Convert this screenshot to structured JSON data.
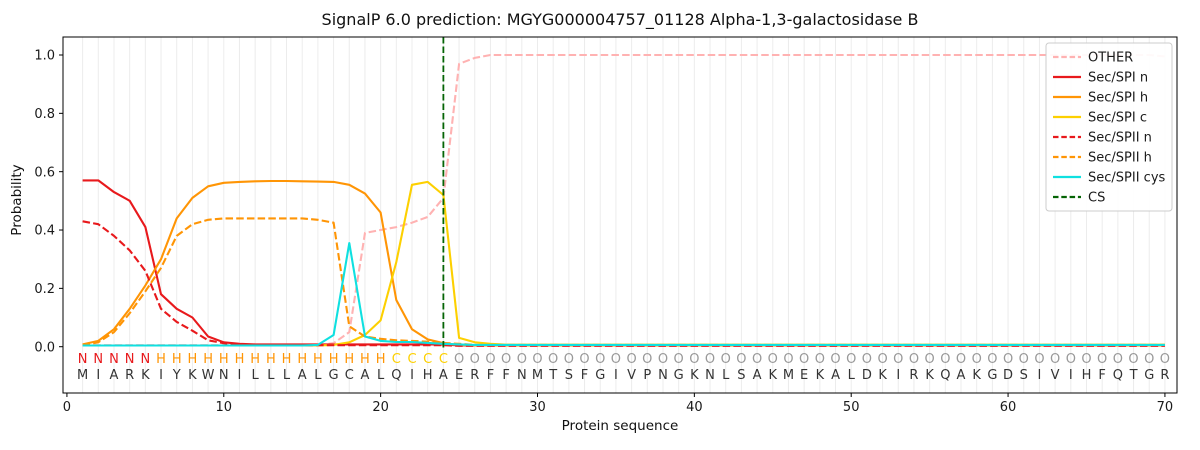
{
  "chart_data": {
    "type": "line",
    "title": "SignalP 6.0 prediction: MGYG000004757_01128 Alpha-1,3-galactosidase B",
    "xlabel": "Protein sequence",
    "ylabel": "Probability",
    "xticks": [
      "0",
      "10",
      "20",
      "30",
      "40",
      "50",
      "60",
      "70"
    ],
    "yticks": [
      "0.0",
      "0.2",
      "0.4",
      "0.6",
      "0.8",
      "1.0"
    ],
    "xlim": [
      -0.25,
      70.77
    ],
    "ylim": [
      -0.16,
      1.06
    ],
    "grid": "vertical gridline at every residue 1-70",
    "legend_position": "upper right",
    "colors": {
      "grid": "#ececec",
      "spine": "#000000",
      "text": "#1a1a1a",
      "sequence_letters": "#333333"
    },
    "region_colors": {
      "N": "#e8191c",
      "H": "#ff9505",
      "C": "#fdd000",
      "O": "#999999"
    },
    "sequence": "MIARKIYKWNILLLALGCALQIHAERFFNMTSFGIVPNGKNLSAKMEKALDKIRKQAKGDSIVIHFQTGR",
    "region_labels": "NNNNNHHHHHHHHHHHHHHHCCCCOOOOOOOOOOOOOOOOOOOOOOOOOOOOOOOOOOOOOOOOOOOOOO",
    "legend": [
      {
        "label": "OTHER",
        "color": "#ffb2b2",
        "dash": "dashed"
      },
      {
        "label": "Sec/SPI n",
        "color": "#e8191c",
        "dash": "solid"
      },
      {
        "label": "Sec/SPI h",
        "color": "#ff9505",
        "dash": "solid"
      },
      {
        "label": "Sec/SPI c",
        "color": "#fdd000",
        "dash": "solid"
      },
      {
        "label": "Sec/SPII n",
        "color": "#e8191c",
        "dash": "dashed"
      },
      {
        "label": "Sec/SPII h",
        "color": "#ff9505",
        "dash": "dashed"
      },
      {
        "label": "Sec/SPII cys",
        "color": "#0fe0e0",
        "dash": "solid"
      },
      {
        "label": "CS",
        "color": "#056405",
        "dash": "dashed"
      }
    ],
    "series": [
      {
        "name": "OTHER",
        "color": "#ffb2b2",
        "dash": "dashed",
        "values": [
          0.005,
          0.005,
          0.005,
          0.005,
          0.005,
          0.005,
          0.005,
          0.005,
          0.005,
          0.005,
          0.005,
          0.005,
          0.005,
          0.005,
          0.005,
          0.005,
          0.012,
          0.05,
          0.39,
          0.4,
          0.41,
          0.425,
          0.445,
          0.51,
          0.97,
          0.99,
          1,
          1,
          1,
          1,
          1,
          1,
          1,
          1,
          1,
          1,
          1,
          1,
          1,
          1,
          1,
          1,
          1,
          1,
          1,
          1,
          1,
          1,
          1,
          1,
          1,
          1,
          1,
          1,
          1,
          1,
          1,
          1,
          1,
          1,
          1,
          1,
          1,
          1,
          1,
          1,
          1,
          1,
          1,
          0.995
        ]
      },
      {
        "name": "Sec/SPI n",
        "color": "#e8191c",
        "dash": "solid",
        "values": [
          0.57,
          0.57,
          0.53,
          0.5,
          0.41,
          0.18,
          0.13,
          0.1,
          0.035,
          0.015,
          0.01,
          0.008,
          0.008,
          0.008,
          0.008,
          0.008,
          0.008,
          0.008,
          0.008,
          0.008,
          0.008,
          0.008,
          0.008,
          0.008,
          0.004,
          0.004,
          0.004,
          0.004,
          0.004,
          0.004,
          0.004,
          0.004,
          0.004,
          0.004,
          0.004,
          0.004,
          0.004,
          0.004,
          0.004,
          0.004,
          0.004,
          0.004,
          0.004,
          0.004,
          0.004,
          0.004,
          0.004,
          0.004,
          0.004,
          0.004,
          0.004,
          0.004,
          0.004,
          0.004,
          0.004,
          0.004,
          0.004,
          0.004,
          0.004,
          0.004,
          0.004,
          0.004,
          0.004,
          0.004,
          0.004,
          0.004,
          0.004,
          0.004,
          0.004,
          0.004
        ]
      },
      {
        "name": "Sec/SPI h",
        "color": "#ff9505",
        "dash": "solid",
        "values": [
          0.008,
          0.02,
          0.06,
          0.13,
          0.21,
          0.3,
          0.44,
          0.51,
          0.55,
          0.562,
          0.565,
          0.567,
          0.568,
          0.568,
          0.567,
          0.566,
          0.565,
          0.555,
          0.525,
          0.46,
          0.16,
          0.06,
          0.025,
          0.012,
          0.006,
          0.004,
          0.004,
          0.004,
          0.004,
          0.004,
          0.004,
          0.004,
          0.004,
          0.004,
          0.004,
          0.004,
          0.004,
          0.004,
          0.004,
          0.004,
          0.004,
          0.004,
          0.004,
          0.004,
          0.004,
          0.004,
          0.004,
          0.004,
          0.004,
          0.004,
          0.004,
          0.004,
          0.004,
          0.004,
          0.004,
          0.004,
          0.004,
          0.004,
          0.004,
          0.004,
          0.004,
          0.004,
          0.004,
          0.004,
          0.004,
          0.004,
          0.004,
          0.004,
          0.004,
          0.004
        ]
      },
      {
        "name": "Sec/SPI c",
        "color": "#fdd000",
        "dash": "solid",
        "values": [
          0.004,
          0.004,
          0.004,
          0.004,
          0.004,
          0.004,
          0.004,
          0.004,
          0.004,
          0.004,
          0.004,
          0.004,
          0.004,
          0.004,
          0.004,
          0.004,
          0.006,
          0.015,
          0.04,
          0.09,
          0.29,
          0.555,
          0.565,
          0.52,
          0.03,
          0.015,
          0.01,
          0.007,
          0.007,
          0.007,
          0.007,
          0.007,
          0.007,
          0.007,
          0.007,
          0.007,
          0.007,
          0.007,
          0.007,
          0.007,
          0.007,
          0.007,
          0.007,
          0.007,
          0.007,
          0.007,
          0.007,
          0.007,
          0.007,
          0.007,
          0.007,
          0.007,
          0.007,
          0.007,
          0.007,
          0.007,
          0.007,
          0.007,
          0.007,
          0.007,
          0.007,
          0.007,
          0.007,
          0.007,
          0.007,
          0.007,
          0.007,
          0.007,
          0.007,
          0.007
        ]
      },
      {
        "name": "Sec/SPII n",
        "color": "#e8191c",
        "dash": "dashed",
        "values": [
          0.43,
          0.42,
          0.38,
          0.33,
          0.26,
          0.13,
          0.085,
          0.055,
          0.022,
          0.012,
          0.007,
          0.005,
          0.005,
          0.005,
          0.005,
          0.005,
          0.005,
          0.005,
          0.005,
          0.005,
          0.005,
          0.005,
          0.005,
          0.005,
          0.003,
          0.003,
          0.003,
          0.003,
          0.003,
          0.003,
          0.003,
          0.003,
          0.003,
          0.003,
          0.003,
          0.003,
          0.003,
          0.003,
          0.003,
          0.003,
          0.003,
          0.003,
          0.003,
          0.003,
          0.003,
          0.003,
          0.003,
          0.003,
          0.003,
          0.003,
          0.003,
          0.003,
          0.003,
          0.003,
          0.003,
          0.003,
          0.003,
          0.003,
          0.003,
          0.003,
          0.003,
          0.003,
          0.003,
          0.003,
          0.003,
          0.003,
          0.003,
          0.003,
          0.003,
          0.003
        ]
      },
      {
        "name": "Sec/SPII h",
        "color": "#ff9505",
        "dash": "dashed",
        "values": [
          0.006,
          0.015,
          0.05,
          0.115,
          0.19,
          0.27,
          0.38,
          0.42,
          0.435,
          0.44,
          0.44,
          0.44,
          0.44,
          0.44,
          0.44,
          0.435,
          0.425,
          0.07,
          0.035,
          0.027,
          0.022,
          0.02,
          0.017,
          0.013,
          0.01,
          0.006,
          0.006,
          0.006,
          0.006,
          0.006,
          0.006,
          0.006,
          0.006,
          0.006,
          0.006,
          0.006,
          0.006,
          0.006,
          0.006,
          0.006,
          0.006,
          0.006,
          0.006,
          0.006,
          0.006,
          0.006,
          0.006,
          0.006,
          0.006,
          0.006,
          0.006,
          0.006,
          0.006,
          0.006,
          0.006,
          0.006,
          0.006,
          0.006,
          0.006,
          0.006,
          0.006,
          0.006,
          0.006,
          0.006,
          0.006,
          0.006,
          0.006,
          0.006,
          0.006,
          0.006
        ]
      },
      {
        "name": "Sec/SPII cys",
        "color": "#0fe0e0",
        "dash": "solid",
        "values": [
          0.004,
          0.004,
          0.004,
          0.004,
          0.004,
          0.004,
          0.004,
          0.004,
          0.004,
          0.004,
          0.004,
          0.004,
          0.004,
          0.004,
          0.004,
          0.006,
          0.04,
          0.355,
          0.035,
          0.02,
          0.016,
          0.016,
          0.013,
          0.01,
          0.008,
          0.006,
          0.006,
          0.006,
          0.006,
          0.006,
          0.006,
          0.006,
          0.006,
          0.006,
          0.006,
          0.006,
          0.006,
          0.006,
          0.006,
          0.006,
          0.006,
          0.006,
          0.006,
          0.006,
          0.006,
          0.006,
          0.006,
          0.006,
          0.006,
          0.006,
          0.006,
          0.006,
          0.006,
          0.006,
          0.006,
          0.006,
          0.006,
          0.006,
          0.006,
          0.006,
          0.006,
          0.006,
          0.006,
          0.006,
          0.006,
          0.006,
          0.006,
          0.006,
          0.006,
          0.006
        ]
      },
      {
        "name": "CS",
        "color": "#056405",
        "dash": "dashed",
        "type": "vline",
        "x": 24
      }
    ]
  }
}
